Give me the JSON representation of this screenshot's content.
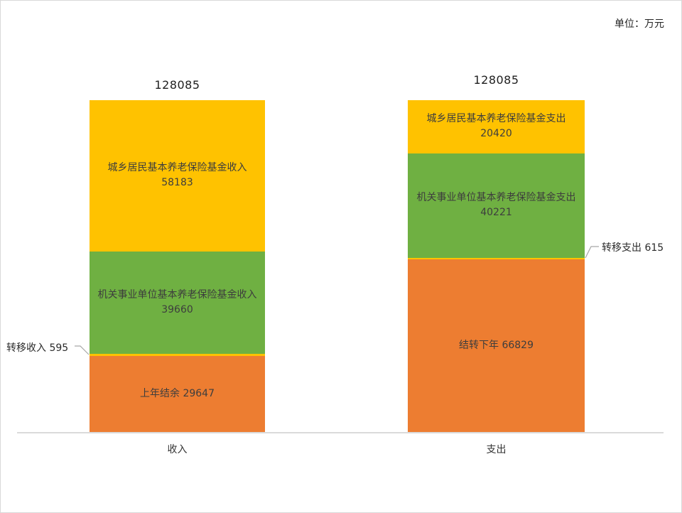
{
  "unit_label": "单位：万元",
  "colors": {
    "yellow": "#FFC200",
    "green": "#6FB042",
    "orange": "#ED7D31",
    "axis": "#DADADA",
    "leader": "#A6A6A6"
  },
  "chart_data": {
    "type": "bar",
    "subtype": "stacked-column",
    "title": "",
    "unit": "万元",
    "grid": false,
    "legend": "none",
    "ylim": [
      0,
      128085
    ],
    "categories": [
      "收入",
      "支出"
    ],
    "totals": [
      128085,
      128085
    ],
    "bars": [
      {
        "category": "收入",
        "total": 128085,
        "segments": [
          {
            "label": "城乡居民基本养老保险基金收入",
            "value": 58183,
            "color": "yellow",
            "label_style": "stacked"
          },
          {
            "label": "机关事业单位基本养老保险基金收入",
            "value": 39660,
            "color": "green",
            "label_style": "stacked"
          },
          {
            "label": "转移收入",
            "value": 595,
            "color": "yellow",
            "label_style": "none"
          },
          {
            "label": "上年结余",
            "value": 29647,
            "color": "orange",
            "label_style": "inline"
          }
        ]
      },
      {
        "category": "支出",
        "total": 128085,
        "segments": [
          {
            "label": "城乡居民基本养老保险基金支出",
            "value": 20420,
            "color": "yellow",
            "label_style": "stacked"
          },
          {
            "label": "机关事业单位基本养老保险基金支出",
            "value": 40221,
            "color": "green",
            "label_style": "stacked"
          },
          {
            "label": "转移支出",
            "value": 615,
            "color": "yellow",
            "label_style": "none"
          },
          {
            "label": "结转下年",
            "value": 66829,
            "color": "orange",
            "label_style": "inline"
          }
        ]
      }
    ],
    "annotations": [
      {
        "text": "转移收入 595",
        "target_segment": "转移收入",
        "side": "left"
      },
      {
        "text": "转移支出 615",
        "target_segment": "转移支出",
        "side": "right"
      }
    ]
  }
}
